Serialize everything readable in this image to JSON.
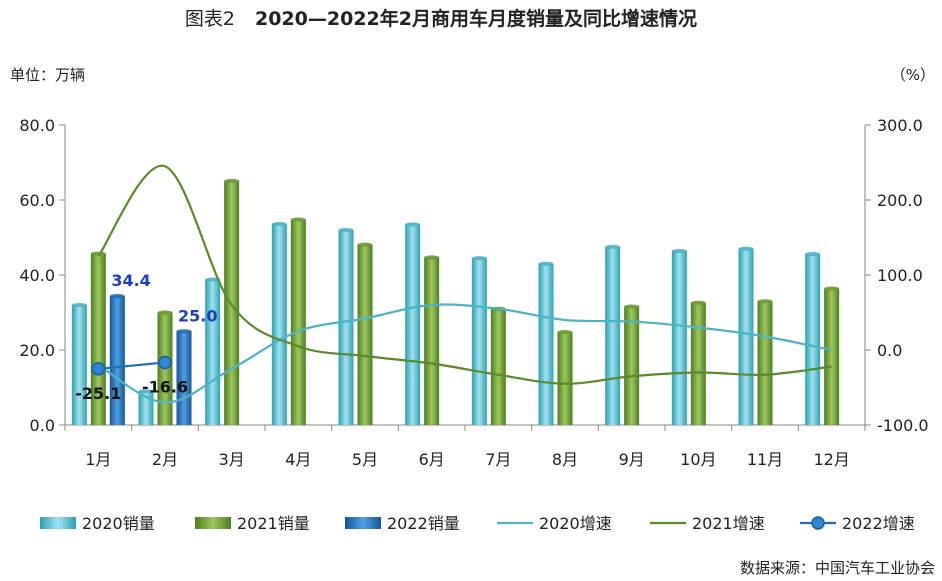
{
  "chart_data": {
    "type": "bar",
    "title_prefix": "图表2",
    "title": "2020—2022年2月商用车月度销量及同比增速情况",
    "left_unit": "单位：万辆",
    "right_unit": "（%）",
    "source": "数据来源：中国汽车工业协会",
    "categories": [
      "1月",
      "2月",
      "3月",
      "4月",
      "5月",
      "6月",
      "7月",
      "8月",
      "9月",
      "10月",
      "11月",
      "12月"
    ],
    "y_left": {
      "min": 0,
      "max": 80,
      "ticks": [
        "0.0",
        "20.0",
        "40.0",
        "60.0",
        "80.0"
      ]
    },
    "y_right": {
      "min": -100,
      "max": 300,
      "ticks": [
        "-100.0",
        "0.0",
        "100.0",
        "200.0",
        "300.0"
      ]
    },
    "bar_series": [
      {
        "name": "2020销量",
        "color": "#4bb4c8",
        "values": [
          32.0,
          9.0,
          38.8,
          53.6,
          52.0,
          53.5,
          44.5,
          43.0,
          47.5,
          46.4,
          47.0,
          45.6
        ]
      },
      {
        "name": "2021销量",
        "color": "#6b9a2e",
        "values": [
          45.7,
          30.0,
          65.1,
          54.8,
          48.1,
          44.7,
          31.0,
          24.8,
          31.6,
          32.6,
          33.0,
          36.4
        ]
      },
      {
        "name": "2022销量",
        "color": "#1f6fb5",
        "values": [
          34.4,
          25.0
        ]
      }
    ],
    "line_series": [
      {
        "name": "2020增速",
        "color": "#4bb4c8",
        "values": [
          -20,
          -70,
          -25,
          25,
          42,
          60,
          55,
          40,
          38,
          30,
          18,
          0
        ]
      },
      {
        "name": "2021增速",
        "color": "#5a8a2a",
        "values": [
          125,
          245,
          60,
          5,
          -8,
          -18,
          -33,
          -45,
          -35,
          -30,
          -33,
          -22
        ]
      },
      {
        "name": "2022增速",
        "color": "#1f6fb5",
        "values": [
          -25.1,
          -16.6
        ]
      }
    ],
    "bar_labels": [
      {
        "series": 2,
        "index": 0,
        "text": "34.4"
      },
      {
        "series": 2,
        "index": 1,
        "text": "25.0"
      }
    ],
    "line_labels": [
      {
        "series": 2,
        "index": 0,
        "text": "-25.1"
      },
      {
        "series": 2,
        "index": 1,
        "text": "-16.6"
      }
    ],
    "legend_position": "bottom",
    "grid": false
  }
}
